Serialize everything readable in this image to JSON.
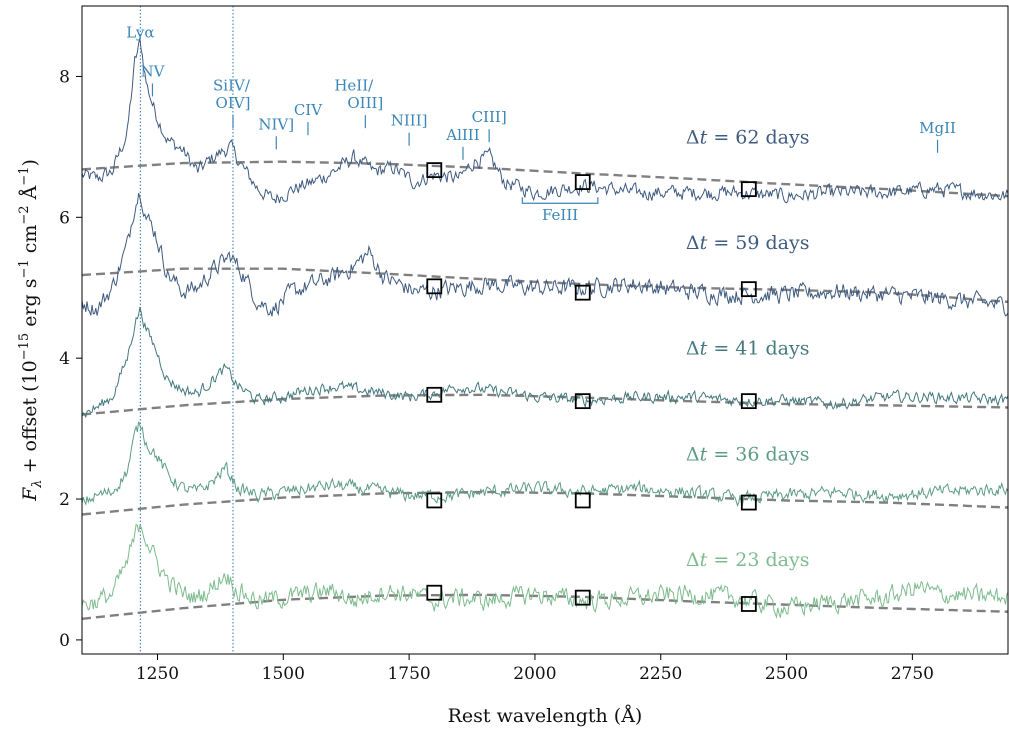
{
  "chart_data": {
    "type": "line",
    "xlabel": "Rest wavelength (Å)",
    "ylabel_parts": {
      "f": "F",
      "lambda": "λ",
      "offset": " + offset (10",
      "exp1": "−15",
      "unit1": " erg s",
      "exp2": "−1",
      "unit2": " cm",
      "exp3": "−2",
      "unit3": " Å",
      "exp4": "−1",
      "close": ")"
    },
    "xlim": [
      1100,
      2940
    ],
    "ylim": [
      -0.2,
      9.0
    ],
    "x_ticks": [
      1250,
      1500,
      1750,
      2000,
      2250,
      2500,
      2750
    ],
    "y_ticks": [
      0,
      2,
      4,
      6,
      8
    ],
    "vlines": [
      1216,
      1400
    ],
    "line_ids": [
      {
        "label": "Lyα",
        "x": 1216,
        "y": 8.55,
        "tick": false
      },
      {
        "label": "NV",
        "x": 1240,
        "y": 8.0,
        "tick": true
      },
      {
        "label": "SiIV/",
        "x": 1397,
        "y": 7.8,
        "tick": false
      },
      {
        "label": "OIV]",
        "x": 1400,
        "y": 7.55,
        "tick": true
      },
      {
        "label": "NIV]",
        "x": 1486,
        "y": 7.25,
        "tick": true
      },
      {
        "label": "CIV",
        "x": 1549,
        "y": 7.45,
        "tick": true
      },
      {
        "label": "HeII/",
        "x": 1640,
        "y": 7.8,
        "tick": false
      },
      {
        "label": "OIII]",
        "x": 1663,
        "y": 7.55,
        "tick": true
      },
      {
        "label": "NIII]",
        "x": 1750,
        "y": 7.3,
        "tick": true
      },
      {
        "label": "AlIII",
        "x": 1857,
        "y": 7.1,
        "tick": true
      },
      {
        "label": "CIII]",
        "x": 1909,
        "y": 7.35,
        "tick": true
      },
      {
        "label": "MgII",
        "x": 2800,
        "y": 7.2,
        "tick": true
      }
    ],
    "feiii_bracket": {
      "label": "FeIII",
      "x_range": [
        1975,
        2125
      ],
      "y": 6.2
    },
    "series": [
      {
        "name": "Δt = 62 days",
        "prefix": "Δ",
        "var": "t",
        "suffix": " = 62 days",
        "color": "#3f5b80",
        "label_x": 2300,
        "label_y": 7.05,
        "offset": 6.3,
        "shape": [
          [
            1100,
            0.3
          ],
          [
            1130,
            0.25
          ],
          [
            1160,
            0.35
          ],
          [
            1190,
            0.9
          ],
          [
            1205,
            1.9
          ],
          [
            1216,
            2.2
          ],
          [
            1228,
            1.6
          ],
          [
            1245,
            1.2
          ],
          [
            1270,
            0.8
          ],
          [
            1300,
            0.65
          ],
          [
            1330,
            0.35
          ],
          [
            1360,
            0.55
          ],
          [
            1395,
            0.7
          ],
          [
            1420,
            0.4
          ],
          [
            1450,
            0.1
          ],
          [
            1480,
            -0.05
          ],
          [
            1520,
            0.1
          ],
          [
            1560,
            0.2
          ],
          [
            1600,
            0.35
          ],
          [
            1640,
            0.55
          ],
          [
            1680,
            0.35
          ],
          [
            1720,
            0.4
          ],
          [
            1760,
            0.2
          ],
          [
            1800,
            0.3
          ],
          [
            1850,
            0.25
          ],
          [
            1880,
            0.5
          ],
          [
            1910,
            0.55
          ],
          [
            1940,
            0.2
          ],
          [
            2000,
            0.05
          ],
          [
            2100,
            0.15
          ],
          [
            2200,
            0.05
          ],
          [
            2300,
            0.05
          ],
          [
            2400,
            0.05
          ],
          [
            2500,
            0.0
          ],
          [
            2600,
            0.05
          ],
          [
            2700,
            0.05
          ],
          [
            2800,
            0.1
          ],
          [
            2940,
            0.0
          ]
        ],
        "noise": 0.09,
        "continuum": {
          "x": [
            1100,
            1300,
            1500,
            1700,
            1900,
            2100,
            2300,
            2500,
            2700,
            2940
          ],
          "y": [
            6.68,
            6.77,
            6.79,
            6.76,
            6.7,
            6.62,
            6.55,
            6.47,
            6.4,
            6.3
          ]
        },
        "markers": [
          {
            "x": 1800,
            "y": 6.67
          },
          {
            "x": 2095,
            "y": 6.5
          },
          {
            "x": 2425,
            "y": 6.4
          }
        ]
      },
      {
        "name": "Δt = 59 days",
        "prefix": "Δ",
        "var": "t",
        "suffix": " = 59 days",
        "color": "#3f5b80",
        "label_x": 2300,
        "label_y": 5.55,
        "offset": 4.9,
        "shape": [
          [
            1100,
            -0.1
          ],
          [
            1130,
            -0.2
          ],
          [
            1160,
            0.1
          ],
          [
            1190,
            0.7
          ],
          [
            1205,
            1.3
          ],
          [
            1216,
            1.5
          ],
          [
            1228,
            1.1
          ],
          [
            1245,
            0.9
          ],
          [
            1270,
            0.3
          ],
          [
            1300,
            0.05
          ],
          [
            1330,
            0.1
          ],
          [
            1360,
            0.35
          ],
          [
            1395,
            0.55
          ],
          [
            1420,
            0.3
          ],
          [
            1450,
            -0.1
          ],
          [
            1480,
            -0.2
          ],
          [
            1520,
            0.05
          ],
          [
            1560,
            0.15
          ],
          [
            1600,
            0.25
          ],
          [
            1640,
            0.4
          ],
          [
            1670,
            0.6
          ],
          [
            1700,
            0.25
          ],
          [
            1760,
            0.05
          ],
          [
            1800,
            0.05
          ],
          [
            1850,
            0.1
          ],
          [
            1900,
            0.15
          ],
          [
            2000,
            0.1
          ],
          [
            2100,
            0.1
          ],
          [
            2200,
            0.15
          ],
          [
            2300,
            0.05
          ],
          [
            2400,
            0.0
          ],
          [
            2500,
            0.0
          ],
          [
            2600,
            0.05
          ],
          [
            2700,
            0.0
          ],
          [
            2800,
            -0.05
          ],
          [
            2940,
            -0.15
          ]
        ],
        "noise": 0.11,
        "continuum": {
          "x": [
            1100,
            1300,
            1500,
            1700,
            1900,
            2100,
            2300,
            2500,
            2700,
            2940
          ],
          "y": [
            5.18,
            5.27,
            5.27,
            5.2,
            5.12,
            5.05,
            5.0,
            4.97,
            4.93,
            4.8
          ]
        },
        "markers": [
          {
            "x": 1800,
            "y": 5.02
          },
          {
            "x": 2095,
            "y": 4.93
          },
          {
            "x": 2425,
            "y": 4.98
          }
        ]
      },
      {
        "name": "Δt = 41 days",
        "prefix": "Δ",
        "var": "t",
        "suffix": " = 41 days",
        "color": "#44797e",
        "label_x": 2300,
        "label_y": 4.05,
        "offset": 3.4,
        "shape": [
          [
            1100,
            -0.2
          ],
          [
            1130,
            -0.1
          ],
          [
            1160,
            0.05
          ],
          [
            1190,
            0.6
          ],
          [
            1205,
            1.1
          ],
          [
            1216,
            1.3
          ],
          [
            1228,
            1.0
          ],
          [
            1245,
            0.75
          ],
          [
            1270,
            0.3
          ],
          [
            1300,
            0.15
          ],
          [
            1330,
            0.1
          ],
          [
            1360,
            0.3
          ],
          [
            1385,
            0.45
          ],
          [
            1410,
            0.2
          ],
          [
            1450,
            0.0
          ],
          [
            1500,
            0.05
          ],
          [
            1550,
            0.15
          ],
          [
            1600,
            0.2
          ],
          [
            1650,
            0.15
          ],
          [
            1700,
            0.1
          ],
          [
            1750,
            0.05
          ],
          [
            1800,
            0.1
          ],
          [
            1850,
            0.2
          ],
          [
            1900,
            0.15
          ],
          [
            2000,
            0.05
          ],
          [
            2100,
            0.0
          ],
          [
            2200,
            0.05
          ],
          [
            2300,
            0.05
          ],
          [
            2400,
            0.0
          ],
          [
            2500,
            0.0
          ],
          [
            2600,
            -0.05
          ],
          [
            2700,
            0.05
          ],
          [
            2800,
            0.05
          ],
          [
            2940,
            0.0
          ]
        ],
        "noise": 0.07,
        "continuum": {
          "x": [
            1100,
            1300,
            1500,
            1700,
            1900,
            2100,
            2300,
            2500,
            2700,
            2940
          ],
          "y": [
            3.2,
            3.33,
            3.42,
            3.47,
            3.48,
            3.44,
            3.39,
            3.35,
            3.33,
            3.3
          ]
        },
        "markers": [
          {
            "x": 1800,
            "y": 3.48
          },
          {
            "x": 2095,
            "y": 3.39
          },
          {
            "x": 2425,
            "y": 3.39
          }
        ]
      },
      {
        "name": "Δt = 36 days",
        "prefix": "Δ",
        "var": "t",
        "suffix": " = 36 days",
        "color": "#5c9c86",
        "label_x": 2300,
        "label_y": 2.55,
        "offset": 2.0,
        "shape": [
          [
            1100,
            -0.05
          ],
          [
            1130,
            0.05
          ],
          [
            1160,
            0.1
          ],
          [
            1190,
            0.4
          ],
          [
            1205,
            0.9
          ],
          [
            1216,
            1.1
          ],
          [
            1228,
            0.8
          ],
          [
            1245,
            0.65
          ],
          [
            1270,
            0.35
          ],
          [
            1300,
            0.15
          ],
          [
            1330,
            0.1
          ],
          [
            1360,
            0.25
          ],
          [
            1385,
            0.45
          ],
          [
            1410,
            0.15
          ],
          [
            1450,
            0.05
          ],
          [
            1500,
            0.1
          ],
          [
            1550,
            0.15
          ],
          [
            1600,
            0.2
          ],
          [
            1650,
            0.15
          ],
          [
            1700,
            0.1
          ],
          [
            1750,
            0.05
          ],
          [
            1800,
            0.05
          ],
          [
            1850,
            0.05
          ],
          [
            1900,
            0.1
          ],
          [
            2000,
            0.15
          ],
          [
            2100,
            0.1
          ],
          [
            2200,
            0.15
          ],
          [
            2300,
            0.1
          ],
          [
            2400,
            0.0
          ],
          [
            2500,
            0.05
          ],
          [
            2600,
            0.1
          ],
          [
            2700,
            0.05
          ],
          [
            2800,
            0.1
          ],
          [
            2940,
            0.15
          ]
        ],
        "noise": 0.08,
        "continuum": {
          "x": [
            1100,
            1300,
            1500,
            1700,
            1900,
            2100,
            2300,
            2500,
            2700,
            2940
          ],
          "y": [
            1.78,
            1.92,
            2.02,
            2.08,
            2.1,
            2.08,
            2.03,
            1.98,
            1.95,
            1.88
          ]
        },
        "markers": [
          {
            "x": 1800,
            "y": 1.98
          },
          {
            "x": 2095,
            "y": 1.98
          },
          {
            "x": 2425,
            "y": 1.95
          }
        ]
      },
      {
        "name": "Δt = 23 days",
        "prefix": "Δ",
        "var": "t",
        "suffix": " = 23 days",
        "color": "#7ebb8e",
        "label_x": 2300,
        "label_y": 1.05,
        "offset": 0.55,
        "shape": [
          [
            1100,
            -0.05
          ],
          [
            1130,
            0.0
          ],
          [
            1160,
            0.1
          ],
          [
            1190,
            0.55
          ],
          [
            1205,
            0.9
          ],
          [
            1216,
            1.15
          ],
          [
            1228,
            0.9
          ],
          [
            1245,
            0.6
          ],
          [
            1270,
            0.3
          ],
          [
            1300,
            0.1
          ],
          [
            1330,
            0.05
          ],
          [
            1360,
            0.2
          ],
          [
            1385,
            0.4
          ],
          [
            1410,
            0.15
          ],
          [
            1450,
            0.0
          ],
          [
            1500,
            0.05
          ],
          [
            1550,
            0.1
          ],
          [
            1600,
            0.15
          ],
          [
            1640,
            0.0
          ],
          [
            1700,
            0.15
          ],
          [
            1750,
            0.1
          ],
          [
            1800,
            0.0
          ],
          [
            1850,
            0.05
          ],
          [
            1900,
            0.0
          ],
          [
            2000,
            0.1
          ],
          [
            2100,
            0.0
          ],
          [
            2200,
            0.05
          ],
          [
            2300,
            0.1
          ],
          [
            2400,
            0.05
          ],
          [
            2500,
            -0.1
          ],
          [
            2600,
            0.0
          ],
          [
            2700,
            0.05
          ],
          [
            2760,
            0.2
          ],
          [
            2800,
            0.1
          ],
          [
            2940,
            0.05
          ]
        ],
        "noise": 0.12,
        "continuum": {
          "x": [
            1100,
            1300,
            1500,
            1700,
            1900,
            2100,
            2300,
            2500,
            2700,
            2940
          ],
          "y": [
            0.3,
            0.45,
            0.57,
            0.63,
            0.64,
            0.61,
            0.55,
            0.5,
            0.45,
            0.4
          ]
        },
        "markers": [
          {
            "x": 1800,
            "y": 0.67
          },
          {
            "x": 2095,
            "y": 0.6
          },
          {
            "x": 2425,
            "y": 0.51
          }
        ]
      }
    ]
  }
}
